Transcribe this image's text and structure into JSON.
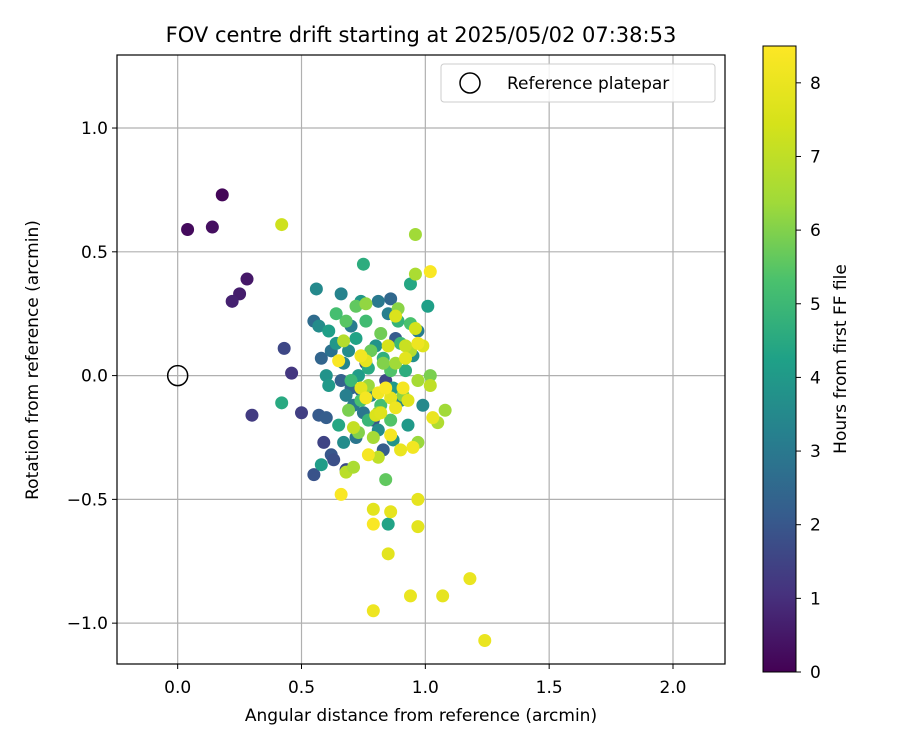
{
  "chart_data": {
    "type": "scatter",
    "title": "FOV centre drift starting at 2025/05/02 07:38:53",
    "xlabel": "Angular distance from reference (arcmin)",
    "ylabel": "Rotation from reference (arcmin)",
    "xlim": [
      -0.245,
      2.21
    ],
    "ylim": [
      -1.165,
      1.295
    ],
    "xticks": [
      0.0,
      0.5,
      1.0,
      1.5,
      2.0
    ],
    "xtick_labels": [
      "0.0",
      "0.5",
      "1.0",
      "1.5",
      "2.0"
    ],
    "yticks": [
      -1.0,
      -0.5,
      0.0,
      0.5,
      1.0
    ],
    "ytick_labels": [
      "−1.0",
      "−0.5",
      "0.0",
      "0.5",
      "1.0"
    ],
    "grid": true,
    "colormap": "viridis",
    "colorbar": {
      "label": "Hours from first FF file",
      "range": [
        0,
        8.5
      ],
      "ticks": [
        0,
        1,
        2,
        3,
        4,
        5,
        6,
        7,
        8
      ],
      "tick_labels": [
        "0",
        "1",
        "2",
        "3",
        "4",
        "5",
        "6",
        "7",
        "8"
      ]
    },
    "legend": {
      "position": "top-right",
      "entries": [
        "Reference platepar"
      ]
    },
    "reference_point": {
      "x": 0.0,
      "y": 0.0,
      "label": "Reference platepar",
      "marker": "open-circle"
    },
    "points": [
      {
        "x": 0.18,
        "y": 0.73,
        "h": 0.1
      },
      {
        "x": 0.04,
        "y": 0.59,
        "h": 0.2
      },
      {
        "x": 0.14,
        "y": 0.6,
        "h": 0.3
      },
      {
        "x": 0.28,
        "y": 0.39,
        "h": 0.5
      },
      {
        "x": 0.25,
        "y": 0.33,
        "h": 0.6
      },
      {
        "x": 0.22,
        "y": 0.3,
        "h": 0.7
      },
      {
        "x": 0.46,
        "y": 0.01,
        "h": 1.2
      },
      {
        "x": 0.3,
        "y": -0.16,
        "h": 1.3
      },
      {
        "x": 0.5,
        "y": -0.15,
        "h": 1.4
      },
      {
        "x": 0.43,
        "y": 0.11,
        "h": 1.6
      },
      {
        "x": 0.55,
        "y": -0.4,
        "h": 1.9
      },
      {
        "x": 0.62,
        "y": -0.32,
        "h": 2.0
      },
      {
        "x": 0.59,
        "y": -0.27,
        "h": 1.5
      },
      {
        "x": 0.57,
        "y": -0.16,
        "h": 2.1
      },
      {
        "x": 0.6,
        "y": -0.17,
        "h": 2.2
      },
      {
        "x": 0.63,
        "y": -0.34,
        "h": 1.8
      },
      {
        "x": 0.68,
        "y": -0.38,
        "h": 1.7
      },
      {
        "x": 0.58,
        "y": 0.07,
        "h": 2.4
      },
      {
        "x": 0.66,
        "y": -0.02,
        "h": 2.3
      },
      {
        "x": 0.7,
        "y": -0.05,
        "h": 2.5
      },
      {
        "x": 0.74,
        "y": -0.06,
        "h": 2.2
      },
      {
        "x": 0.62,
        "y": 0.1,
        "h": 2.8
      },
      {
        "x": 0.55,
        "y": 0.22,
        "h": 2.6
      },
      {
        "x": 0.76,
        "y": 0.05,
        "h": 1.9
      },
      {
        "x": 0.86,
        "y": 0.31,
        "h": 2.5
      },
      {
        "x": 0.88,
        "y": 0.15,
        "h": 2.1
      },
      {
        "x": 0.84,
        "y": -0.02,
        "h": 1.6
      },
      {
        "x": 0.79,
        "y": -0.18,
        "h": 2.0
      },
      {
        "x": 0.83,
        "y": -0.3,
        "h": 2.2
      },
      {
        "x": 0.72,
        "y": -0.25,
        "h": 2.9
      },
      {
        "x": 0.7,
        "y": 0.2,
        "h": 3.1
      },
      {
        "x": 0.66,
        "y": 0.33,
        "h": 3.3
      },
      {
        "x": 0.56,
        "y": 0.35,
        "h": 3.5
      },
      {
        "x": 0.57,
        "y": 0.2,
        "h": 3.6
      },
      {
        "x": 0.6,
        "y": 0.0,
        "h": 3.8
      },
      {
        "x": 0.61,
        "y": -0.04,
        "h": 4.0
      },
      {
        "x": 0.64,
        "y": 0.13,
        "h": 3.9
      },
      {
        "x": 0.67,
        "y": 0.05,
        "h": 3.4
      },
      {
        "x": 0.68,
        "y": -0.08,
        "h": 3.2
      },
      {
        "x": 0.71,
        "y": -0.12,
        "h": 3.0
      },
      {
        "x": 0.75,
        "y": -0.15,
        "h": 2.9
      },
      {
        "x": 0.78,
        "y": -0.08,
        "h": 3.3
      },
      {
        "x": 0.81,
        "y": -0.22,
        "h": 3.6
      },
      {
        "x": 0.87,
        "y": -0.26,
        "h": 3.8
      },
      {
        "x": 0.93,
        "y": -0.2,
        "h": 4.0
      },
      {
        "x": 0.99,
        "y": -0.12,
        "h": 3.5
      },
      {
        "x": 0.95,
        "y": 0.08,
        "h": 3.7
      },
      {
        "x": 0.97,
        "y": 0.18,
        "h": 3.1
      },
      {
        "x": 1.01,
        "y": 0.28,
        "h": 4.2
      },
      {
        "x": 0.94,
        "y": 0.37,
        "h": 4.4
      },
      {
        "x": 0.75,
        "y": 0.45,
        "h": 4.6
      },
      {
        "x": 0.74,
        "y": 0.3,
        "h": 3.9
      },
      {
        "x": 0.72,
        "y": 0.15,
        "h": 4.3
      },
      {
        "x": 0.69,
        "y": 0.1,
        "h": 3.6
      },
      {
        "x": 0.73,
        "y": 0.0,
        "h": 4.1
      },
      {
        "x": 0.77,
        "y": 0.03,
        "h": 4.5
      },
      {
        "x": 0.8,
        "y": 0.12,
        "h": 3.8
      },
      {
        "x": 0.83,
        "y": 0.07,
        "h": 4.7
      },
      {
        "x": 0.87,
        "y": -0.05,
        "h": 4.0
      },
      {
        "x": 0.9,
        "y": -0.1,
        "h": 3.4
      },
      {
        "x": 0.92,
        "y": 0.02,
        "h": 4.6
      },
      {
        "x": 0.89,
        "y": 0.22,
        "h": 4.8
      },
      {
        "x": 0.85,
        "y": 0.25,
        "h": 3.2
      },
      {
        "x": 0.81,
        "y": 0.3,
        "h": 3.0
      },
      {
        "x": 0.61,
        "y": 0.18,
        "h": 4.2
      },
      {
        "x": 0.65,
        "y": -0.2,
        "h": 4.4
      },
      {
        "x": 0.67,
        "y": -0.27,
        "h": 3.6
      },
      {
        "x": 0.58,
        "y": -0.36,
        "h": 4.1
      },
      {
        "x": 0.42,
        "y": -0.11,
        "h": 4.5
      },
      {
        "x": 0.85,
        "y": -0.6,
        "h": 4.3
      },
      {
        "x": 0.77,
        "y": -0.18,
        "h": 4.9
      },
      {
        "x": 0.82,
        "y": -0.12,
        "h": 5.2
      },
      {
        "x": 0.86,
        "y": 0.02,
        "h": 5.4
      },
      {
        "x": 0.9,
        "y": 0.13,
        "h": 5.0
      },
      {
        "x": 0.94,
        "y": 0.21,
        "h": 5.3
      },
      {
        "x": 0.76,
        "y": 0.22,
        "h": 5.1
      },
      {
        "x": 0.72,
        "y": 0.28,
        "h": 5.6
      },
      {
        "x": 0.68,
        "y": 0.22,
        "h": 5.5
      },
      {
        "x": 0.64,
        "y": 0.25,
        "h": 5.2
      },
      {
        "x": 0.7,
        "y": -0.02,
        "h": 5.0
      },
      {
        "x": 0.74,
        "y": -0.1,
        "h": 5.3
      },
      {
        "x": 0.78,
        "y": 0.1,
        "h": 5.7
      },
      {
        "x": 0.82,
        "y": 0.17,
        "h": 5.8
      },
      {
        "x": 0.86,
        "y": -0.18,
        "h": 5.4
      },
      {
        "x": 0.84,
        "y": -0.42,
        "h": 5.6
      },
      {
        "x": 0.69,
        "y": -0.14,
        "h": 5.9
      },
      {
        "x": 0.73,
        "y": -0.23,
        "h": 6.0
      },
      {
        "x": 0.76,
        "y": 0.29,
        "h": 6.2
      },
      {
        "x": 0.89,
        "y": 0.27,
        "h": 6.1
      },
      {
        "x": 0.96,
        "y": 0.57,
        "h": 6.4
      },
      {
        "x": 0.96,
        "y": 0.41,
        "h": 6.6
      },
      {
        "x": 0.81,
        "y": -0.15,
        "h": 6.2
      },
      {
        "x": 0.79,
        "y": -0.25,
        "h": 6.5
      },
      {
        "x": 0.77,
        "y": -0.04,
        "h": 6.3
      },
      {
        "x": 0.83,
        "y": 0.05,
        "h": 6.0
      },
      {
        "x": 0.88,
        "y": 0.05,
        "h": 6.4
      },
      {
        "x": 0.91,
        "y": -0.08,
        "h": 6.1
      },
      {
        "x": 0.97,
        "y": -0.02,
        "h": 6.5
      },
      {
        "x": 1.02,
        "y": 0.0,
        "h": 5.9
      },
      {
        "x": 1.05,
        "y": -0.19,
        "h": 6.7
      },
      {
        "x": 1.08,
        "y": -0.14,
        "h": 6.4
      },
      {
        "x": 0.97,
        "y": -0.27,
        "h": 6.3
      },
      {
        "x": 0.94,
        "y": 0.1,
        "h": 6.8
      },
      {
        "x": 1.02,
        "y": -0.04,
        "h": 7.0
      },
      {
        "x": 0.68,
        "y": -0.39,
        "h": 6.9
      },
      {
        "x": 0.71,
        "y": -0.37,
        "h": 6.6
      },
      {
        "x": 0.71,
        "y": -0.21,
        "h": 7.1
      },
      {
        "x": 0.81,
        "y": -0.33,
        "h": 7.0
      },
      {
        "x": 0.67,
        "y": 0.14,
        "h": 6.8
      },
      {
        "x": 0.92,
        "y": 0.12,
        "h": 7.2
      },
      {
        "x": 0.96,
        "y": 0.19,
        "h": 7.4
      },
      {
        "x": 0.42,
        "y": 0.61,
        "h": 7.3
      },
      {
        "x": 0.88,
        "y": 0.24,
        "h": 7.6
      },
      {
        "x": 0.85,
        "y": 0.12,
        "h": 7.5
      },
      {
        "x": 0.92,
        "y": 0.07,
        "h": 7.8
      },
      {
        "x": 0.99,
        "y": 0.12,
        "h": 7.7
      },
      {
        "x": 0.76,
        "y": 0.06,
        "h": 7.9
      },
      {
        "x": 0.74,
        "y": -0.05,
        "h": 7.8
      },
      {
        "x": 0.8,
        "y": -0.16,
        "h": 7.6
      },
      {
        "x": 0.86,
        "y": -0.09,
        "h": 7.9
      },
      {
        "x": 0.88,
        "y": -0.13,
        "h": 8.1
      },
      {
        "x": 0.93,
        "y": -0.1,
        "h": 7.7
      },
      {
        "x": 0.79,
        "y": -0.54,
        "h": 7.8
      },
      {
        "x": 0.86,
        "y": -0.55,
        "h": 7.9
      },
      {
        "x": 0.85,
        "y": -0.72,
        "h": 7.8
      },
      {
        "x": 0.97,
        "y": -0.5,
        "h": 7.9
      },
      {
        "x": 0.97,
        "y": -0.61,
        "h": 7.8
      },
      {
        "x": 0.94,
        "y": -0.89,
        "h": 8.0
      },
      {
        "x": 1.07,
        "y": -0.89,
        "h": 7.9
      },
      {
        "x": 1.18,
        "y": -0.82,
        "h": 8.0
      },
      {
        "x": 0.79,
        "y": -0.95,
        "h": 8.1
      },
      {
        "x": 1.24,
        "y": -1.07,
        "h": 8.0
      },
      {
        "x": 0.82,
        "y": -0.15,
        "h": 7.7
      },
      {
        "x": 0.9,
        "y": -0.3,
        "h": 8.0
      },
      {
        "x": 0.95,
        "y": -0.29,
        "h": 8.2
      },
      {
        "x": 0.77,
        "y": -0.32,
        "h": 8.3
      },
      {
        "x": 0.66,
        "y": -0.48,
        "h": 8.4
      },
      {
        "x": 0.79,
        "y": -0.6,
        "h": 8.4
      },
      {
        "x": 0.86,
        "y": -0.24,
        "h": 8.3
      },
      {
        "x": 1.02,
        "y": 0.42,
        "h": 8.4
      },
      {
        "x": 0.74,
        "y": 0.08,
        "h": 8.2
      },
      {
        "x": 0.65,
        "y": 0.06,
        "h": 8.4
      },
      {
        "x": 0.76,
        "y": -0.09,
        "h": 8.3
      },
      {
        "x": 0.81,
        "y": -0.07,
        "h": 8.2
      },
      {
        "x": 0.97,
        "y": 0.13,
        "h": 8.1
      },
      {
        "x": 1.03,
        "y": -0.17,
        "h": 8.0
      },
      {
        "x": 0.91,
        "y": -0.05,
        "h": 8.3
      },
      {
        "x": 0.84,
        "y": -0.05,
        "h": 8.4
      }
    ]
  }
}
